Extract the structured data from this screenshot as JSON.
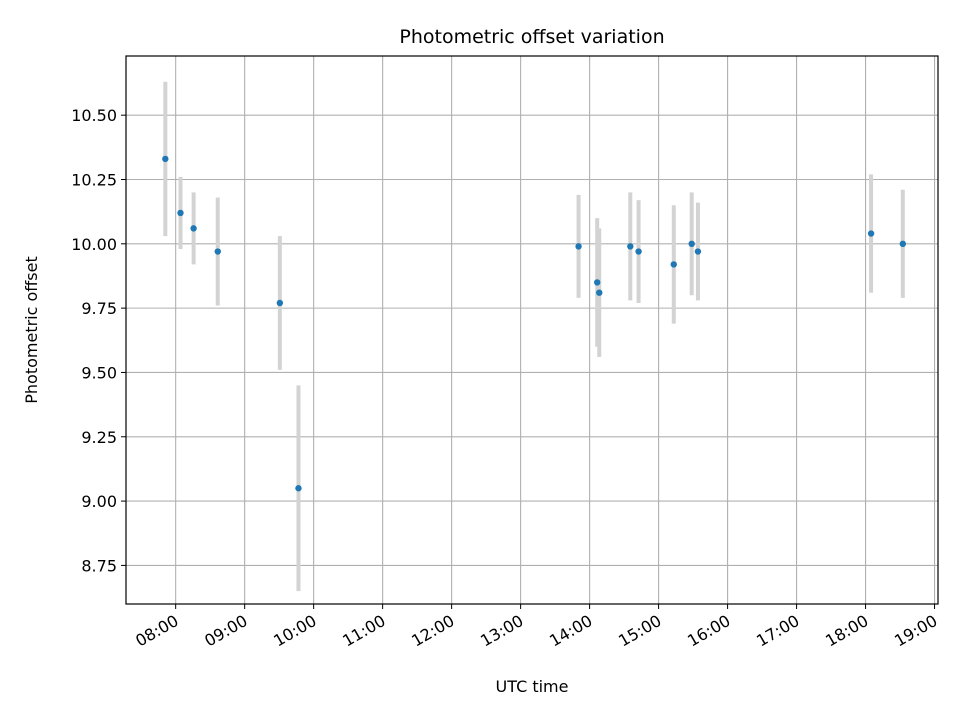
{
  "chart_data": {
    "type": "scatter",
    "title": "Photometric offset variation",
    "xlabel": "UTC time",
    "ylabel": "Photometric offset",
    "x_unit": "hours (UTC)",
    "xlim": [
      7.28,
      19.05
    ],
    "ylim": [
      8.6,
      10.73
    ],
    "grid": true,
    "legend": "none",
    "x_ticks": [
      {
        "value": 8,
        "label": "08:00"
      },
      {
        "value": 9,
        "label": "09:00"
      },
      {
        "value": 10,
        "label": "10:00"
      },
      {
        "value": 11,
        "label": "11:00"
      },
      {
        "value": 12,
        "label": "12:00"
      },
      {
        "value": 13,
        "label": "13:00"
      },
      {
        "value": 14,
        "label": "14:00"
      },
      {
        "value": 15,
        "label": "15:00"
      },
      {
        "value": 16,
        "label": "16:00"
      },
      {
        "value": 17,
        "label": "17:00"
      },
      {
        "value": 18,
        "label": "18:00"
      },
      {
        "value": 19,
        "label": "19:00"
      }
    ],
    "y_ticks": [
      {
        "value": 8.75,
        "label": "8.75"
      },
      {
        "value": 9.0,
        "label": "9.00"
      },
      {
        "value": 9.25,
        "label": "9.25"
      },
      {
        "value": 9.5,
        "label": "9.50"
      },
      {
        "value": 9.75,
        "label": "9.75"
      },
      {
        "value": 10.0,
        "label": "10.00"
      },
      {
        "value": 10.25,
        "label": "10.25"
      },
      {
        "value": 10.5,
        "label": "10.50"
      }
    ],
    "point_color": "#1f77b4",
    "errorbar_color": "#d3d3d3",
    "points": [
      {
        "x": 7.85,
        "y": 10.33,
        "err": 0.3
      },
      {
        "x": 8.07,
        "y": 10.12,
        "err": 0.14
      },
      {
        "x": 8.26,
        "y": 10.06,
        "err": 0.14
      },
      {
        "x": 8.61,
        "y": 9.97,
        "err": 0.21
      },
      {
        "x": 9.51,
        "y": 9.77,
        "err": 0.26
      },
      {
        "x": 9.78,
        "y": 9.05,
        "err": 0.4
      },
      {
        "x": 13.84,
        "y": 9.99,
        "err": 0.2
      },
      {
        "x": 14.11,
        "y": 9.85,
        "err": 0.25
      },
      {
        "x": 14.14,
        "y": 9.81,
        "err": 0.25
      },
      {
        "x": 14.59,
        "y": 9.99,
        "err": 0.21
      },
      {
        "x": 14.71,
        "y": 9.97,
        "err": 0.2
      },
      {
        "x": 15.22,
        "y": 9.92,
        "err": 0.23
      },
      {
        "x": 15.48,
        "y": 10.0,
        "err": 0.2
      },
      {
        "x": 15.57,
        "y": 9.97,
        "err": 0.19
      },
      {
        "x": 18.08,
        "y": 10.04,
        "err": 0.23
      },
      {
        "x": 18.54,
        "y": 10.0,
        "err": 0.21
      }
    ]
  }
}
